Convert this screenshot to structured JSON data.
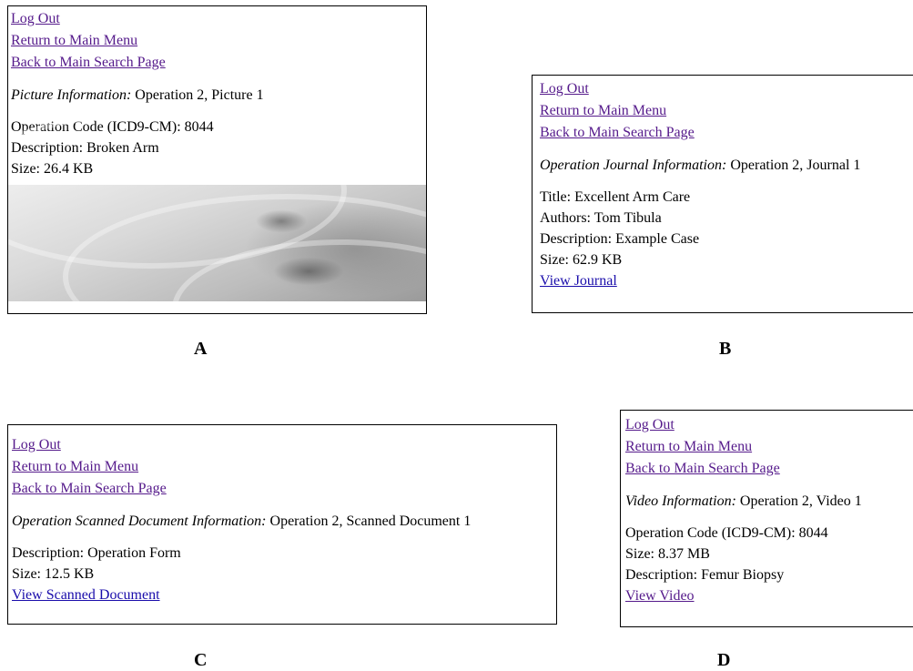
{
  "panels": {
    "a": {
      "links": [
        "Log Out",
        "Return to Main Menu",
        "Back to Main Search Page"
      ],
      "info_label": "Picture Information:",
      "info_value": " Operation 2, Picture 1",
      "fields": [
        "Operation Code (ICD9-CM): 8044",
        "Description: Broken Arm",
        "Size: 26.4 KB"
      ],
      "image": "x-ray-picture",
      "caption": "A"
    },
    "b": {
      "links": [
        "Log Out",
        "Return to Main Menu",
        "Back to Main Search Page"
      ],
      "info_label": "Operation Journal Information:",
      "info_value": " Operation 2, Journal 1",
      "fields": [
        "Title: Excellent Arm Care",
        "Authors: Tom Tibula",
        "Description: Example Case",
        "Size: 62.9 KB"
      ],
      "action_link": "View Journal",
      "caption": "B"
    },
    "c": {
      "links": [
        "Log Out",
        "Return to Main Menu",
        "Back to Main Search Page"
      ],
      "info_label": "Operation Scanned Document Information:",
      "info_value": " Operation 2, Scanned Document 1",
      "fields": [
        "Description: Operation Form",
        "Size: 12.5 KB"
      ],
      "action_link": "View Scanned Document",
      "caption": "C"
    },
    "d": {
      "links": [
        "Log Out",
        "Return to Main Menu",
        "Back to Main Search Page"
      ],
      "info_label": "Video Information:",
      "info_value": " Operation 2, Video 1",
      "fields": [
        "Operation Code (ICD9-CM): 8044",
        "Size: 8.37 MB",
        "Description: Femur Biopsy"
      ],
      "action_link": "View Video",
      "caption": "D"
    }
  }
}
